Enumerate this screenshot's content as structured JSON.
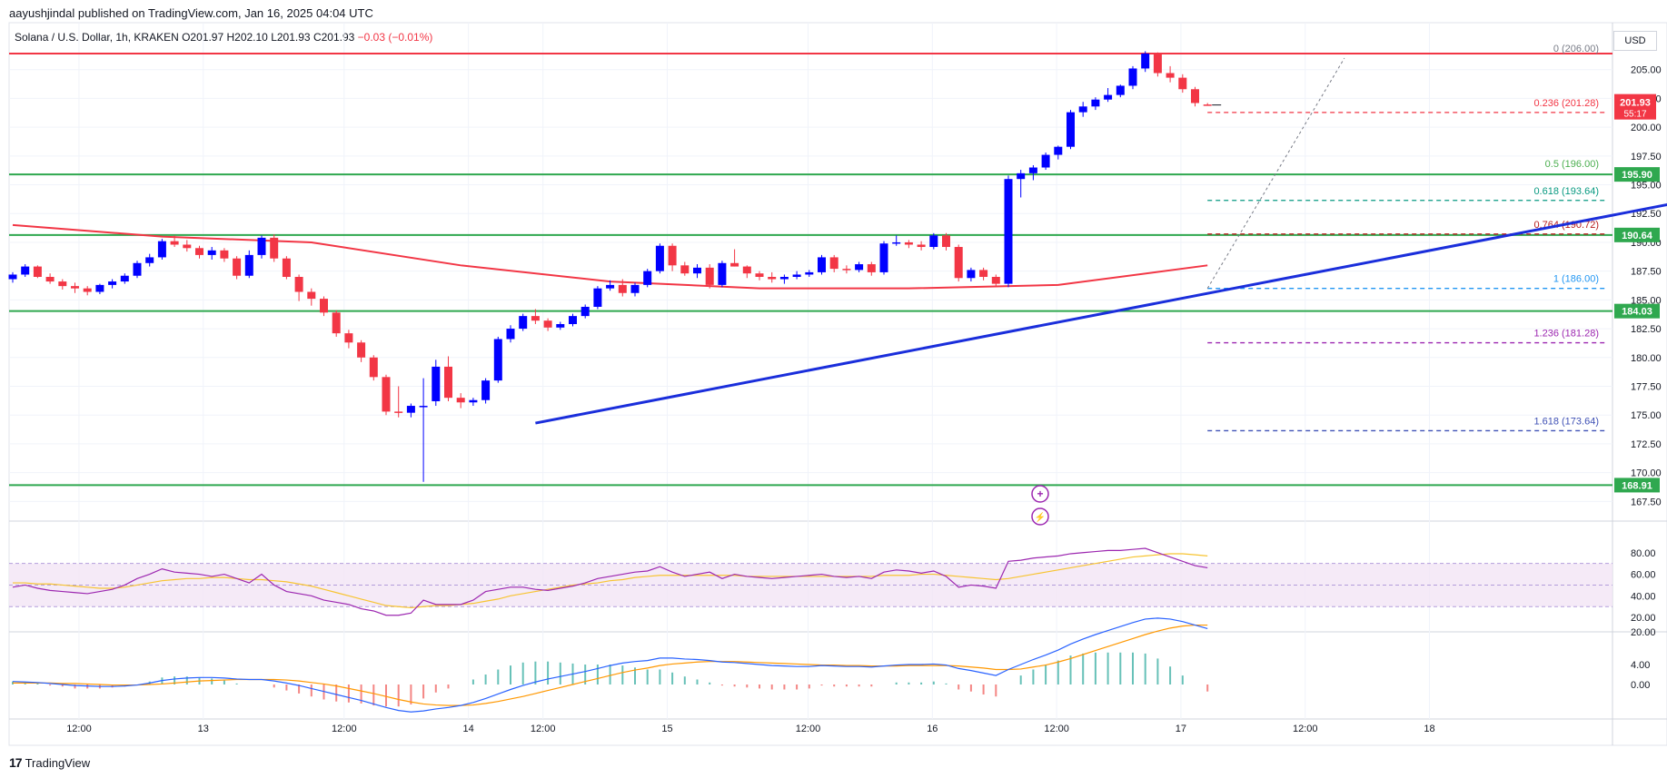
{
  "header": {
    "published_line": "aayushjindal published on TradingView.com, Jan 16, 2025 04:04 UTC"
  },
  "legend": {
    "symbol": "Solana / U.S. Dollar, 1h, KRAKEN",
    "open": "O201.97",
    "high": "H202.10",
    "low": "L201.93",
    "close": "C201.93",
    "change": "−0.03 (−0.01%)"
  },
  "currency_label": "USD",
  "brand": {
    "logo": "17",
    "name": "TradingView"
  },
  "colors": {
    "up": "#0000ff",
    "down": "#f23645",
    "ma": "#f23645",
    "trendline": "#1a2edb",
    "support_line": "#2fa84f",
    "resistance_line": "#f23645",
    "rsi": "#9c27b0",
    "rsi_ma": "#f7c431",
    "macd": "#2962ff",
    "signal": "#ff9800"
  },
  "chart_data": {
    "type": "candlestick",
    "price_axis": {
      "ticks": [
        "205.00",
        "202.50",
        "200.00",
        "197.50",
        "195.00",
        "192.50",
        "190.00",
        "187.50",
        "185.00",
        "182.50",
        "180.00",
        "177.50",
        "175.00",
        "172.50",
        "170.00",
        "167.50"
      ],
      "range": [
        166.5,
        207.5
      ]
    },
    "time_axis": {
      "labels": [
        "12:00",
        "13",
        "12:00",
        "14",
        "12:00",
        "15",
        "12:00",
        "16",
        "12:00",
        "17",
        "12:00",
        "18"
      ]
    },
    "candles": [
      [
        186.8,
        187.4,
        186.5,
        187.2
      ],
      [
        187.2,
        188.1,
        187.0,
        187.9
      ],
      [
        187.9,
        188.0,
        186.9,
        187.0
      ],
      [
        187.0,
        187.3,
        186.4,
        186.6
      ],
      [
        186.6,
        186.8,
        185.9,
        186.2
      ],
      [
        186.2,
        186.5,
        185.6,
        186.0
      ],
      [
        186.0,
        186.2,
        185.4,
        185.7
      ],
      [
        185.7,
        186.4,
        185.5,
        186.3
      ],
      [
        186.3,
        186.8,
        186.0,
        186.6
      ],
      [
        186.6,
        187.3,
        186.4,
        187.1
      ],
      [
        187.1,
        188.4,
        186.9,
        188.2
      ],
      [
        188.2,
        189.0,
        187.9,
        188.7
      ],
      [
        188.7,
        190.3,
        188.5,
        190.1
      ],
      [
        190.1,
        190.6,
        189.6,
        189.8
      ],
      [
        189.8,
        190.2,
        189.2,
        189.5
      ],
      [
        189.5,
        189.7,
        188.6,
        188.9
      ],
      [
        188.9,
        189.6,
        188.5,
        189.3
      ],
      [
        189.3,
        189.5,
        188.3,
        188.6
      ],
      [
        188.6,
        188.8,
        186.8,
        187.1
      ],
      [
        187.1,
        189.3,
        186.9,
        188.9
      ],
      [
        188.9,
        190.6,
        188.6,
        190.4
      ],
      [
        190.4,
        190.7,
        188.3,
        188.6
      ],
      [
        188.6,
        188.8,
        186.8,
        187.0
      ],
      [
        187.0,
        187.2,
        184.9,
        185.7
      ],
      [
        185.7,
        186.0,
        184.5,
        185.1
      ],
      [
        185.1,
        185.3,
        183.6,
        183.9
      ],
      [
        183.9,
        184.1,
        181.8,
        182.1
      ],
      [
        182.1,
        182.4,
        180.8,
        181.3
      ],
      [
        181.3,
        181.5,
        179.6,
        180.0
      ],
      [
        180.0,
        180.2,
        178.0,
        178.3
      ],
      [
        178.3,
        178.5,
        175.0,
        175.3
      ],
      [
        175.3,
        177.5,
        174.8,
        175.2
      ],
      [
        175.2,
        176.0,
        174.8,
        175.8
      ],
      [
        175.8,
        178.2,
        169.2,
        175.8
      ],
      [
        176.2,
        179.8,
        175.8,
        179.2
      ],
      [
        179.2,
        180.1,
        176.2,
        176.5
      ],
      [
        176.5,
        176.9,
        175.6,
        176.1
      ],
      [
        176.1,
        176.5,
        175.8,
        176.3
      ],
      [
        176.3,
        178.2,
        176.0,
        178.0
      ],
      [
        178.0,
        181.8,
        177.8,
        181.6
      ],
      [
        181.6,
        182.8,
        181.3,
        182.5
      ],
      [
        182.5,
        183.8,
        182.3,
        183.6
      ],
      [
        183.6,
        184.2,
        182.9,
        183.2
      ],
      [
        183.2,
        183.4,
        182.3,
        182.6
      ],
      [
        182.6,
        183.1,
        182.4,
        182.9
      ],
      [
        182.9,
        183.8,
        182.7,
        183.6
      ],
      [
        183.6,
        184.6,
        183.4,
        184.4
      ],
      [
        184.4,
        186.2,
        184.2,
        186.0
      ],
      [
        186.0,
        186.7,
        185.8,
        186.3
      ],
      [
        186.3,
        186.8,
        185.3,
        185.6
      ],
      [
        185.6,
        186.5,
        185.3,
        186.3
      ],
      [
        186.3,
        187.7,
        186.1,
        187.5
      ],
      [
        187.5,
        189.9,
        187.3,
        189.7
      ],
      [
        189.7,
        189.9,
        187.5,
        188.0
      ],
      [
        188.0,
        188.3,
        187.1,
        187.3
      ],
      [
        187.3,
        188.1,
        186.9,
        187.8
      ],
      [
        187.8,
        188.1,
        186.0,
        186.3
      ],
      [
        186.3,
        188.4,
        186.1,
        188.2
      ],
      [
        188.2,
        189.4,
        187.9,
        187.9
      ],
      [
        187.9,
        188.0,
        186.9,
        187.3
      ],
      [
        187.3,
        187.5,
        186.7,
        187.0
      ],
      [
        187.0,
        187.4,
        186.5,
        186.8
      ],
      [
        186.8,
        187.2,
        186.4,
        187.0
      ],
      [
        187.0,
        187.5,
        186.8,
        187.2
      ],
      [
        187.2,
        187.6,
        187.0,
        187.4
      ],
      [
        187.4,
        188.9,
        187.2,
        188.7
      ],
      [
        188.7,
        188.9,
        187.4,
        187.7
      ],
      [
        187.7,
        188.0,
        187.3,
        187.6
      ],
      [
        187.6,
        188.3,
        187.4,
        188.1
      ],
      [
        188.1,
        188.3,
        187.1,
        187.4
      ],
      [
        187.4,
        190.1,
        187.2,
        189.9
      ],
      [
        189.9,
        190.6,
        189.7,
        190.0
      ],
      [
        190.0,
        190.2,
        189.5,
        189.8
      ],
      [
        189.8,
        190.1,
        189.3,
        189.6
      ],
      [
        189.6,
        190.8,
        189.4,
        190.6
      ],
      [
        190.6,
        190.8,
        189.3,
        189.6
      ],
      [
        189.6,
        189.8,
        186.6,
        186.9
      ],
      [
        186.9,
        187.8,
        186.6,
        187.6
      ],
      [
        187.6,
        187.8,
        186.7,
        187.0
      ],
      [
        187.0,
        187.2,
        186.1,
        186.4
      ],
      [
        186.4,
        195.8,
        186.1,
        195.5
      ],
      [
        195.5,
        196.3,
        193.9,
        196.0
      ],
      [
        196.0,
        196.7,
        195.4,
        196.5
      ],
      [
        196.5,
        197.8,
        196.3,
        197.6
      ],
      [
        197.6,
        198.4,
        197.2,
        198.3
      ],
      [
        198.3,
        201.5,
        198.1,
        201.3
      ],
      [
        201.3,
        202.2,
        200.9,
        201.8
      ],
      [
        201.8,
        202.6,
        201.5,
        202.4
      ],
      [
        202.4,
        203.4,
        202.2,
        202.8
      ],
      [
        202.8,
        203.7,
        202.6,
        203.6
      ],
      [
        203.6,
        205.3,
        203.3,
        205.1
      ],
      [
        205.1,
        206.6,
        204.8,
        206.4
      ],
      [
        206.4,
        206.5,
        204.4,
        204.7
      ],
      [
        204.7,
        205.3,
        203.9,
        204.3
      ],
      [
        204.3,
        204.6,
        203.0,
        203.3
      ],
      [
        203.3,
        203.5,
        201.8,
        202.1
      ],
      [
        201.97,
        202.1,
        201.93,
        201.93
      ]
    ],
    "moving_average": [
      [
        0,
        191.5
      ],
      [
        12,
        190.5
      ],
      [
        24,
        190.0
      ],
      [
        36,
        188.0
      ],
      [
        48,
        186.6
      ],
      [
        60,
        186.0
      ],
      [
        72,
        186.0
      ],
      [
        84,
        186.3
      ],
      [
        96,
        188.0
      ]
    ],
    "trendline": {
      "from": [
        42,
        174.3
      ],
      "to": [
        146,
        196.0
      ]
    },
    "horizontal_levels": [
      {
        "price": 206.4,
        "kind": "resistance"
      },
      {
        "price": 195.9,
        "kind": "support",
        "label": "195.90"
      },
      {
        "price": 190.64,
        "kind": "support",
        "label": "190.64"
      },
      {
        "price": 184.03,
        "kind": "support",
        "label": "184.03"
      },
      {
        "price": 168.91,
        "kind": "support",
        "label": "168.91"
      }
    ],
    "current_price": {
      "label": "201.93",
      "countdown": "55:17",
      "price": 201.93
    },
    "fibonacci": {
      "start_index": 96,
      "levels": [
        {
          "label": "0 (206.00)",
          "price": 206.0,
          "color": "#787b86"
        },
        {
          "label": "0.236 (201.28)",
          "price": 201.28,
          "color": "#f23645"
        },
        {
          "label": "0.5 (196.00)",
          "price": 196.0,
          "color": "#4caf50"
        },
        {
          "label": "0.618 (193.64)",
          "price": 193.64,
          "color": "#089981"
        },
        {
          "label": "0.764 (190.72)",
          "price": 190.72,
          "color": "#b71c1c"
        },
        {
          "label": "1 (186.00)",
          "price": 186.0,
          "color": "#2196f3"
        },
        {
          "label": "1.236 (181.28)",
          "price": 181.28,
          "color": "#9c27b0"
        },
        {
          "label": "1.618 (173.64)",
          "price": 173.64,
          "color": "#3f51b5"
        }
      ]
    },
    "rsi": {
      "ticks": [
        "80.00",
        "60.00",
        "40.00",
        "20.00"
      ],
      "band": [
        30,
        70
      ],
      "values": [
        48,
        50,
        47,
        45,
        44,
        43,
        42,
        44,
        46,
        50,
        56,
        60,
        65,
        62,
        61,
        60,
        58,
        60,
        56,
        52,
        60,
        50,
        44,
        42,
        40,
        36,
        34,
        32,
        28,
        26,
        22,
        22,
        24,
        36,
        32,
        32,
        32,
        36,
        44,
        46,
        48,
        48,
        46,
        45,
        47,
        49,
        52,
        56,
        58,
        60,
        62,
        63,
        67,
        62,
        58,
        60,
        62,
        56,
        60,
        58,
        57,
        56,
        57,
        58,
        59,
        60,
        58,
        57,
        58,
        56,
        62,
        64,
        63,
        61,
        63,
        58,
        48,
        50,
        49,
        47,
        72,
        73,
        75,
        76,
        77,
        79,
        80,
        81,
        82,
        82,
        83,
        84,
        80,
        76,
        72,
        68,
        66
      ],
      "ma_values": [
        52,
        52,
        51,
        51,
        50,
        49,
        48,
        47,
        47,
        48,
        50,
        52,
        54,
        55,
        56,
        56,
        57,
        57,
        56,
        55,
        55,
        54,
        53,
        51,
        49,
        46,
        43,
        40,
        37,
        34,
        31,
        30,
        29,
        30,
        31,
        31,
        32,
        33,
        35,
        37,
        40,
        42,
        44,
        46,
        48,
        50,
        51,
        52,
        54,
        55,
        57,
        58,
        59,
        59,
        59,
        59,
        59,
        59,
        59,
        58,
        58,
        58,
        58,
        58,
        58,
        58,
        58,
        58,
        58,
        58,
        59,
        59,
        59,
        60,
        60,
        59,
        58,
        57,
        56,
        55,
        56,
        58,
        60,
        62,
        64,
        66,
        68,
        70,
        72,
        74,
        76,
        77,
        78,
        79,
        79,
        78,
        77
      ]
    },
    "macd": {
      "ticks": [
        "4.00",
        "0.00"
      ],
      "values": [
        0.6,
        0.5,
        0.4,
        0.2,
        0.0,
        -0.2,
        -0.3,
        -0.4,
        -0.4,
        -0.3,
        -0.1,
        0.3,
        0.8,
        1.1,
        1.3,
        1.4,
        1.4,
        1.3,
        1.1,
        1.0,
        1.0,
        0.7,
        0.3,
        -0.2,
        -0.8,
        -1.4,
        -2.0,
        -2.6,
        -3.2,
        -3.9,
        -4.6,
        -5.2,
        -5.5,
        -5.3,
        -4.9,
        -4.6,
        -4.2,
        -3.6,
        -2.8,
        -1.9,
        -1.0,
        -0.2,
        0.5,
        1.1,
        1.6,
        2.1,
        2.6,
        3.2,
        3.8,
        4.3,
        4.6,
        4.8,
        5.3,
        5.3,
        5.1,
        5.0,
        4.8,
        4.5,
        4.4,
        4.2,
        4.0,
        3.8,
        3.7,
        3.6,
        3.6,
        3.8,
        3.7,
        3.6,
        3.6,
        3.5,
        3.7,
        3.9,
        4.0,
        4.0,
        4.1,
        3.9,
        3.2,
        2.8,
        2.3,
        1.8,
        3.0,
        4.0,
        5.0,
        5.9,
        6.9,
        8.1,
        9.1,
        10.0,
        10.8,
        11.6,
        12.4,
        13.1,
        13.3,
        13.1,
        12.6,
        11.9,
        11.2
      ],
      "signal_values": [
        0.3,
        0.3,
        0.3,
        0.3,
        0.2,
        0.2,
        0.1,
        0.0,
        -0.1,
        -0.1,
        -0.1,
        0.0,
        0.1,
        0.3,
        0.5,
        0.7,
        0.8,
        0.9,
        1.0,
        1.0,
        1.0,
        1.0,
        0.9,
        0.7,
        0.4,
        0.1,
        -0.3,
        -0.8,
        -1.3,
        -1.8,
        -2.4,
        -3.0,
        -3.5,
        -3.9,
        -4.1,
        -4.2,
        -4.2,
        -4.1,
        -3.8,
        -3.4,
        -2.9,
        -2.4,
        -1.8,
        -1.2,
        -0.6,
        0.0,
        0.6,
        1.2,
        1.8,
        2.4,
        2.9,
        3.3,
        3.8,
        4.1,
        4.3,
        4.5,
        4.6,
        4.6,
        4.6,
        4.5,
        4.4,
        4.3,
        4.2,
        4.1,
        4.0,
        3.9,
        3.9,
        3.8,
        3.8,
        3.7,
        3.7,
        3.7,
        3.8,
        3.8,
        3.8,
        3.8,
        3.7,
        3.5,
        3.3,
        3.0,
        3.0,
        3.1,
        3.5,
        3.9,
        4.5,
        5.2,
        6.0,
        6.8,
        7.6,
        8.4,
        9.2,
        10.0,
        10.7,
        11.3,
        11.7,
        11.9,
        11.9
      ]
    }
  }
}
